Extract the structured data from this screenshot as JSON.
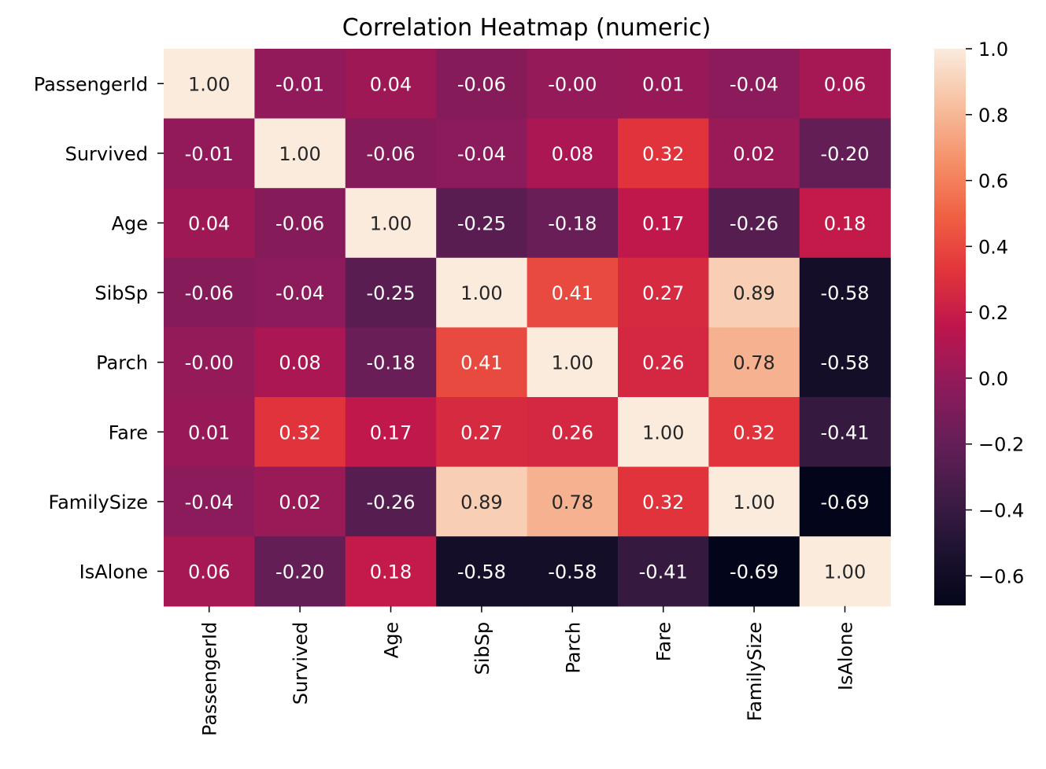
{
  "chart_data": {
    "type": "heatmap",
    "title": "Correlation Heatmap (numeric)",
    "xlabel": "",
    "ylabel": "",
    "rows": [
      "PassengerId",
      "Survived",
      "Age",
      "SibSp",
      "Parch",
      "Fare",
      "FamilySize",
      "IsAlone"
    ],
    "columns": [
      "PassengerId",
      "Survived",
      "Age",
      "SibSp",
      "Parch",
      "Fare",
      "FamilySize",
      "IsAlone"
    ],
    "values": [
      [
        1.0,
        -0.01,
        0.04,
        -0.06,
        -0.0,
        0.01,
        -0.04,
        0.06
      ],
      [
        -0.01,
        1.0,
        -0.06,
        -0.04,
        0.08,
        0.32,
        0.02,
        -0.2
      ],
      [
        0.04,
        -0.06,
        1.0,
        -0.25,
        -0.18,
        0.17,
        -0.26,
        0.18
      ],
      [
        -0.06,
        -0.04,
        -0.25,
        1.0,
        0.41,
        0.27,
        0.89,
        -0.58
      ],
      [
        -0.0,
        0.08,
        -0.18,
        0.41,
        1.0,
        0.26,
        0.78,
        -0.58
      ],
      [
        0.01,
        0.32,
        0.17,
        0.27,
        0.26,
        1.0,
        0.32,
        -0.41
      ],
      [
        -0.04,
        0.02,
        -0.26,
        0.89,
        0.78,
        0.32,
        1.0,
        -0.69
      ],
      [
        0.06,
        -0.2,
        0.18,
        -0.58,
        -0.58,
        -0.41,
        -0.69,
        1.0
      ]
    ],
    "cell_labels": [
      [
        "1.00",
        "-0.01",
        "0.04",
        "-0.06",
        "-0.00",
        "0.01",
        "-0.04",
        "0.06"
      ],
      [
        "-0.01",
        "1.00",
        "-0.06",
        "-0.04",
        "0.08",
        "0.32",
        "0.02",
        "-0.20"
      ],
      [
        "0.04",
        "-0.06",
        "1.00",
        "-0.25",
        "-0.18",
        "0.17",
        "-0.26",
        "0.18"
      ],
      [
        "-0.06",
        "-0.04",
        "-0.25",
        "1.00",
        "0.41",
        "0.27",
        "0.89",
        "-0.58"
      ],
      [
        "-0.00",
        "0.08",
        "-0.18",
        "0.41",
        "1.00",
        "0.26",
        "0.78",
        "-0.58"
      ],
      [
        "0.01",
        "0.32",
        "0.17",
        "0.27",
        "0.26",
        "1.00",
        "0.32",
        "-0.41"
      ],
      [
        "-0.04",
        "0.02",
        "-0.26",
        "0.89",
        "0.78",
        "0.32",
        "1.00",
        "-0.69"
      ],
      [
        "0.06",
        "-0.20",
        "0.18",
        "-0.58",
        "-0.58",
        "-0.41",
        "-0.69",
        "1.00"
      ]
    ],
    "colormap": "rocket",
    "vmin": -0.69,
    "vmax": 1.0,
    "colorbar": {
      "ticks": [
        1.0,
        0.8,
        0.6,
        0.4,
        0.2,
        0.0,
        -0.2,
        -0.4,
        -0.6
      ],
      "tick_labels": [
        "1.0",
        "0.8",
        "0.6",
        "0.4",
        "0.2",
        "0.0",
        "−0.2",
        "−0.4",
        "−0.6"
      ],
      "placement": "right"
    },
    "x_tick_rotation": "vertical",
    "grid": false,
    "colors": {
      "dark_text": "#262626",
      "light_text": "#ffffff"
    }
  }
}
